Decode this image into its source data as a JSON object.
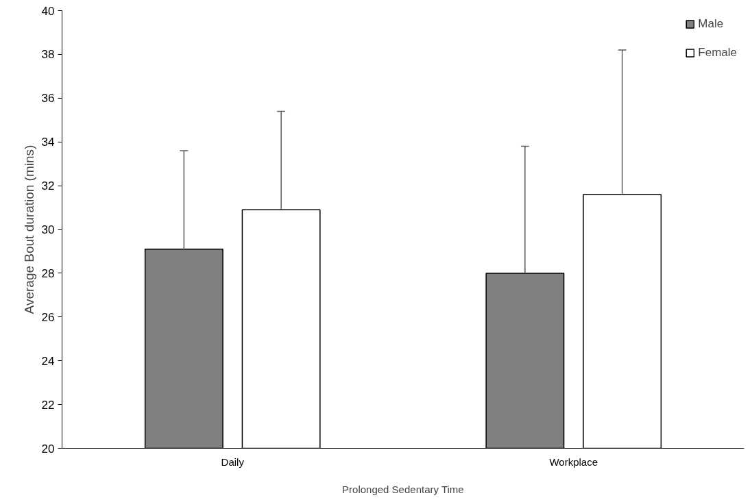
{
  "chart_data": {
    "type": "bar",
    "xlabel": "Prolonged Sedentary Time",
    "ylabel": "Average Bout duration (mins)",
    "categories": [
      "Daily",
      "Workplace"
    ],
    "series": [
      {
        "name": "Male",
        "color": "#808080",
        "values": [
          29.1,
          28.0
        ],
        "errors": [
          [
            29.1,
            33.6
          ],
          [
            28.0,
            33.8
          ]
        ]
      },
      {
        "name": "Female",
        "color": "#ffffff",
        "values": [
          30.9,
          31.6
        ],
        "errors": [
          [
            30.9,
            35.4
          ],
          [
            31.6,
            38.2
          ]
        ]
      }
    ],
    "ylim": [
      20,
      40
    ],
    "yticks": [
      20,
      22,
      24,
      26,
      28,
      30,
      32,
      34,
      36,
      38,
      40
    ],
    "grid": false,
    "legend": "top right"
  }
}
